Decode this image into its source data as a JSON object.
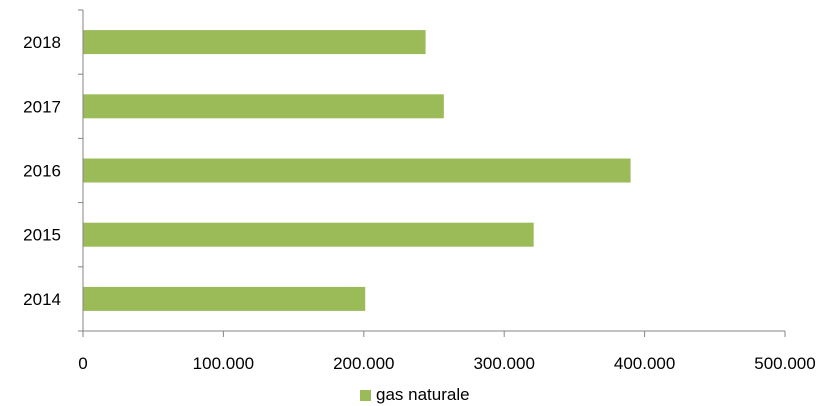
{
  "chart_data": {
    "type": "bar",
    "orientation": "horizontal",
    "categories": [
      "2014",
      "2015",
      "2016",
      "2017",
      "2018"
    ],
    "series": [
      {
        "name": "gas naturale",
        "values": [
          201000,
          321000,
          390000,
          257000,
          244000
        ],
        "color": "#9BBB59"
      }
    ],
    "x_ticks": [
      "0",
      "100.000",
      "200.000",
      "300.000",
      "400.000",
      "500.000"
    ],
    "xlim": [
      0,
      500000
    ],
    "grid": false,
    "legend_position": "bottom",
    "title": "",
    "xlabel": "",
    "ylabel": ""
  }
}
